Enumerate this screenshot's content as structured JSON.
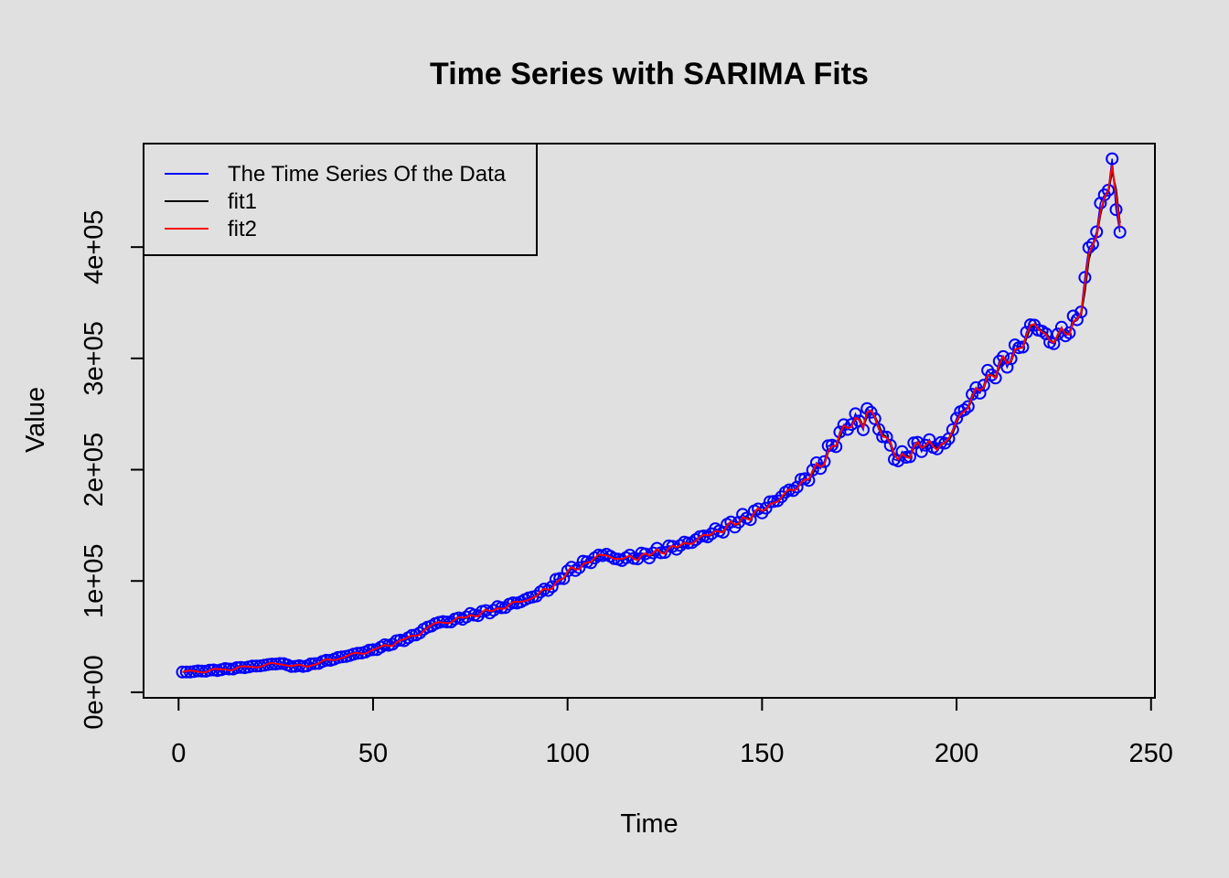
{
  "chart_data": {
    "type": "line",
    "title": "Time Series with SARIMA Fits",
    "xlabel": "Time",
    "ylabel": "Value",
    "xlim": [
      -9,
      251
    ],
    "ylim": [
      -5000,
      493000
    ],
    "x_ticks": [
      0,
      50,
      100,
      150,
      200,
      250
    ],
    "x_tick_labels": [
      "0",
      "50",
      "100",
      "150",
      "200",
      "250"
    ],
    "y_ticks": [
      0,
      100000,
      200000,
      300000,
      400000
    ],
    "y_tick_labels": [
      "0e+00",
      "1e+05",
      "2e+05",
      "3e+05",
      "4e+05"
    ],
    "legend_position": "top-left",
    "series": [
      {
        "name": "The Time Series Of the Data",
        "color": "#0000ff",
        "marker": "circle"
      },
      {
        "name": "fit1",
        "color": "#000000",
        "marker": "none"
      },
      {
        "name": "fit2",
        "color": "#ff0000",
        "marker": "none"
      }
    ],
    "key_points": [
      [
        1,
        18000
      ],
      [
        10,
        20000
      ],
      [
        20,
        23500
      ],
      [
        26,
        26000
      ],
      [
        30,
        23000
      ],
      [
        33,
        24000
      ],
      [
        40,
        30000
      ],
      [
        50,
        38000
      ],
      [
        60,
        50000
      ],
      [
        66,
        62000
      ],
      [
        70,
        64000
      ],
      [
        75,
        69000
      ],
      [
        80,
        73000
      ],
      [
        90,
        84000
      ],
      [
        95,
        93000
      ],
      [
        100,
        108000
      ],
      [
        105,
        117000
      ],
      [
        110,
        125000
      ],
      [
        112,
        119000
      ],
      [
        120,
        123000
      ],
      [
        130,
        133000
      ],
      [
        140,
        147000
      ],
      [
        150,
        164000
      ],
      [
        155,
        176000
      ],
      [
        160,
        188000
      ],
      [
        165,
        205000
      ],
      [
        170,
        232000
      ],
      [
        174,
        247000
      ],
      [
        176,
        238000
      ],
      [
        177,
        256000
      ],
      [
        181,
        232000
      ],
      [
        185,
        208000
      ],
      [
        190,
        222000
      ],
      [
        197,
        222000
      ],
      [
        200,
        245000
      ],
      [
        205,
        270000
      ],
      [
        210,
        290000
      ],
      [
        215,
        305000
      ],
      [
        220,
        332000
      ],
      [
        224,
        315000
      ],
      [
        228,
        325000
      ],
      [
        231,
        333000
      ],
      [
        233,
        370000
      ],
      [
        235,
        410000
      ],
      [
        237,
        430000
      ],
      [
        239,
        460000
      ],
      [
        240,
        478000
      ],
      [
        241,
        428000
      ],
      [
        242,
        415000
      ]
    ]
  }
}
